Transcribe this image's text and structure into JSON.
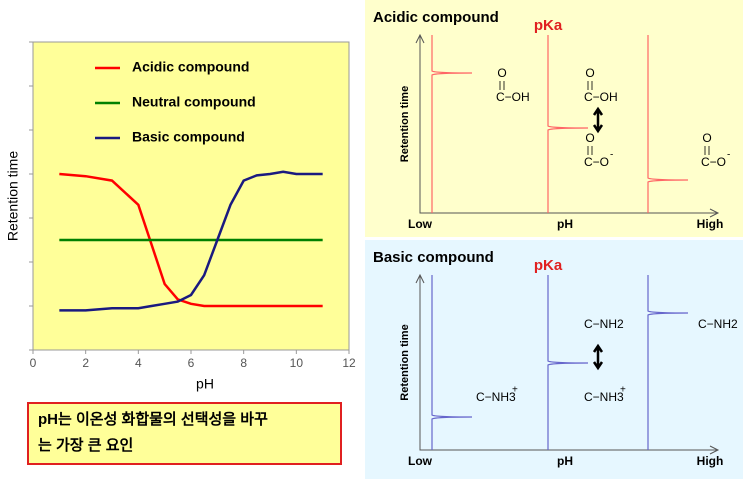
{
  "chart_data": {
    "type": "line",
    "xlabel": "pH",
    "ylabel": "Retention time",
    "x": [
      1,
      2,
      3,
      4,
      4.5,
      5,
      5.5,
      6,
      6.5,
      7,
      7.5,
      8,
      8.5,
      9,
      9.5,
      10,
      11
    ],
    "xlim": [
      0,
      12
    ],
    "xticks": [
      0,
      2,
      4,
      6,
      8,
      10,
      12
    ],
    "ylim": [
      0,
      7
    ],
    "yticks": [
      0,
      1,
      2,
      3,
      4,
      5,
      6,
      7
    ],
    "legend": "top",
    "series": [
      {
        "name": "Acidic compound",
        "color": "#ff0000",
        "values": [
          4.0,
          3.95,
          3.85,
          3.3,
          2.4,
          1.5,
          1.15,
          1.05,
          1.0,
          1.0,
          1.0,
          1.0,
          1.0,
          1.0,
          1.0,
          1.0,
          1.0
        ]
      },
      {
        "name": "Neutral compound",
        "color": "#008000",
        "values": [
          2.5,
          2.5,
          2.5,
          2.5,
          2.5,
          2.5,
          2.5,
          2.5,
          2.5,
          2.5,
          2.5,
          2.5,
          2.5,
          2.5,
          2.5,
          2.5,
          2.5
        ]
      },
      {
        "name": "Basic compound",
        "color": "#1a1a80",
        "values": [
          0.9,
          0.9,
          0.95,
          0.95,
          1.0,
          1.05,
          1.1,
          1.25,
          1.7,
          2.5,
          3.3,
          3.85,
          3.97,
          4.0,
          4.05,
          4.0,
          4.0
        ]
      }
    ]
  },
  "caption": {
    "lines": [
      "pH는 이온성 화합물의 선택성을 바꾸",
      "는 가장 큰 요인"
    ]
  },
  "panels": [
    {
      "title": "Acidic compound",
      "pka": "pKa",
      "low": "Low",
      "mid": "pH",
      "high": "High",
      "ylabel": "Retention time",
      "color": "#ff6666",
      "structures": [
        {
          "top": "O",
          "main": "C−OH"
        },
        {
          "top": "O",
          "main": "C−OH"
        },
        {
          "top": "O",
          "main": "C−O",
          "charge": "-"
        },
        {
          "top": "O",
          "main": "C−O",
          "charge": "-"
        }
      ]
    },
    {
      "title": "Basic compound",
      "pka": "pKa",
      "low": "Low",
      "mid": "pH",
      "high": "High",
      "ylabel": "Retention time",
      "color": "#6666cc",
      "structures": [
        {
          "main": "C−NH3",
          "charge": "+"
        },
        {
          "main": "C−NH2"
        },
        {
          "main": "C−NH3",
          "charge": "+"
        },
        {
          "main": "C−NH2"
        }
      ]
    }
  ]
}
